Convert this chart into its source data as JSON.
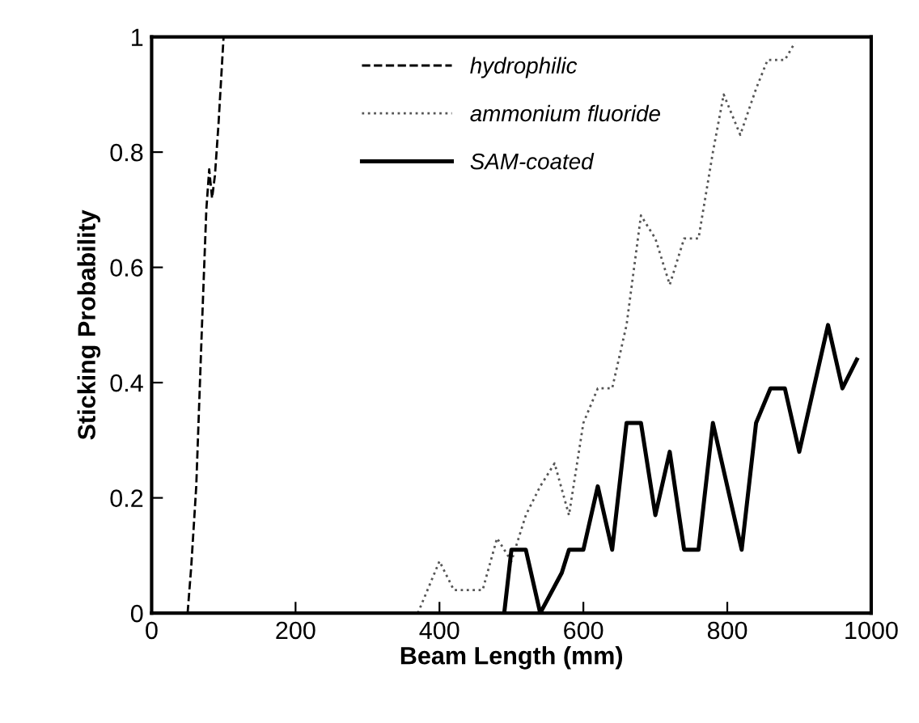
{
  "chart_data": {
    "type": "line",
    "xlabel": "Beam Length (mm)",
    "ylabel": "Sticking Probability",
    "xlim": [
      0,
      1000
    ],
    "ylim": [
      0,
      1
    ],
    "xticks": [
      0,
      200,
      400,
      600,
      800,
      1000
    ],
    "yticks": [
      0,
      0.2,
      0.4,
      0.6,
      0.8,
      1
    ],
    "legend": "top",
    "grid": false,
    "marker": "none",
    "series": [
      {
        "name": "hydrophilic",
        "color": "#000000",
        "line_style": "dashed",
        "x": [
          50,
          55,
          62,
          70,
          76,
          80,
          84,
          88,
          93,
          100
        ],
        "values": [
          0.0,
          0.08,
          0.22,
          0.5,
          0.7,
          0.77,
          0.72,
          0.76,
          0.85,
          1.0
        ]
      },
      {
        "name": "ammonium fluoride",
        "color": "#555555",
        "line_style": "dotted",
        "x": [
          370,
          400,
          420,
          460,
          480,
          500,
          520,
          540,
          560,
          580,
          600,
          620,
          640,
          660,
          680,
          700,
          720,
          740,
          760,
          780,
          795,
          818,
          840,
          856,
          880,
          894
        ],
        "values": [
          0.0,
          0.09,
          0.04,
          0.04,
          0.13,
          0.09,
          0.17,
          0.22,
          0.26,
          0.17,
          0.33,
          0.39,
          0.39,
          0.5,
          0.69,
          0.65,
          0.57,
          0.65,
          0.65,
          0.8,
          0.9,
          0.83,
          0.91,
          0.96,
          0.96,
          0.99
        ]
      },
      {
        "name": "SAM-coated",
        "color": "#000000",
        "line_style": "solid",
        "x": [
          490,
          500,
          520,
          540,
          570,
          580,
          600,
          620,
          640,
          660,
          680,
          700,
          720,
          740,
          760,
          780,
          820,
          840,
          860,
          880,
          900,
          940,
          960,
          980
        ],
        "values": [
          0.0,
          0.11,
          0.11,
          0.0,
          0.07,
          0.11,
          0.11,
          0.22,
          0.11,
          0.33,
          0.33,
          0.17,
          0.28,
          0.11,
          0.11,
          0.33,
          0.11,
          0.33,
          0.39,
          0.39,
          0.28,
          0.5,
          0.39,
          0.44
        ]
      }
    ]
  }
}
